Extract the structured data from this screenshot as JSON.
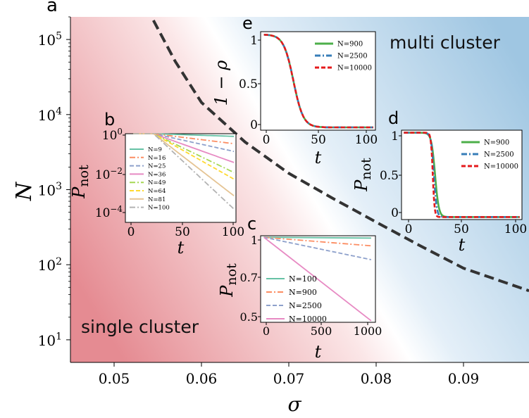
{
  "chart_data": [
    {
      "panel": "a",
      "type": "heatmap",
      "xlabel": "σ",
      "ylabel": "N",
      "xlim": [
        0.045,
        0.0975
      ],
      "ylim": [
        5,
        200000
      ],
      "yscale": "log",
      "xticks": [
        "0.05",
        "0.06",
        "0.07",
        "0.08",
        "0.09"
      ],
      "yticks": [
        "10^1",
        "10^2",
        "10^3",
        "10^4",
        "10^5"
      ],
      "regions": [
        "single cluster",
        "multi cluster"
      ],
      "colors": {
        "single": "#e58b92",
        "multi": "#9fc6e2"
      },
      "boundary": {
        "style": "dashed",
        "color": "#333333",
        "x": [
          0.0545,
          0.057,
          0.06,
          0.065,
          0.07,
          0.075,
          0.08,
          0.085,
          0.09,
          0.0975
        ],
        "y": [
          180000,
          51000,
          14500,
          4300,
          1650,
          770,
          370,
          180,
          90,
          45
        ]
      }
    },
    {
      "panel": "b",
      "type": "line",
      "xlabel": "t",
      "ylabel": "P_not",
      "yscale": "log",
      "xlim": [
        -8,
        102
      ],
      "ylim": [
        0.0001,
        1
      ],
      "xticks": [
        "0",
        "50",
        "100"
      ],
      "yticks": [
        "10^0",
        "10^-2",
        "10^-4"
      ],
      "series": [
        {
          "name": "N=9",
          "color": "#66c2a5",
          "dash": "solid",
          "t0": 20,
          "decay_log10": 0.12
        },
        {
          "name": "N=16",
          "color": "#fc8d62",
          "dash": "dashdot",
          "t0": 20,
          "decay_log10": 0.45
        },
        {
          "name": "N=25",
          "color": "#8da0cb",
          "dash": "dashed",
          "t0": 20,
          "decay_log10": 0.8
        },
        {
          "name": "N=36",
          "color": "#e78ac3",
          "dash": "solid",
          "t0": 20,
          "decay_log10": 1.3
        },
        {
          "name": "N=49",
          "color": "#a6d854",
          "dash": "dashdot",
          "t0": 20,
          "decay_log10": 1.75
        },
        {
          "name": "N=64",
          "color": "#ffd92f",
          "dash": "dashed",
          "t0": 20,
          "decay_log10": 2.05
        },
        {
          "name": "N=81",
          "color": "#e5c494",
          "dash": "solid",
          "t0": 20,
          "decay_log10": 2.8
        },
        {
          "name": "N=100",
          "color": "#b3b3b3",
          "dash": "dashdot",
          "t0": 20,
          "decay_log10": 3.4
        }
      ]
    },
    {
      "panel": "c",
      "type": "line",
      "xlabel": "t",
      "ylabel": "P_not",
      "xlim": [
        -30,
        1040
      ],
      "ylim": [
        0.45,
        1.01
      ],
      "xticks": [
        "0",
        "500",
        "1000"
      ],
      "yticks": [
        "1",
        "0.7",
        "0.5"
      ],
      "series": [
        {
          "name": "N=100",
          "color": "#66c2a5",
          "dash": "solid",
          "x": [
            0,
            1000
          ],
          "y": [
            1.0,
            0.995
          ]
        },
        {
          "name": "N=900",
          "color": "#fc8d62",
          "dash": "dashdot",
          "x": [
            0,
            1000
          ],
          "y": [
            1.0,
            0.945
          ]
        },
        {
          "name": "N=2500",
          "color": "#8da0cb",
          "dash": "dashed",
          "x": [
            0,
            1000
          ],
          "y": [
            1.0,
            0.855
          ]
        },
        {
          "name": "N=10000",
          "color": "#e78ac3",
          "dash": "solid",
          "x": [
            0,
            1000
          ],
          "y": [
            1.0,
            0.46
          ]
        }
      ]
    },
    {
      "panel": "d",
      "type": "line",
      "xlabel": "t",
      "ylabel": "P_not",
      "xlim": [
        -2,
        102
      ],
      "ylim": [
        -0.03,
        1.03
      ],
      "xticks": [
        "0",
        "50",
        "100"
      ],
      "yticks": [
        "1",
        "0.5",
        "0"
      ],
      "series": [
        {
          "name": "N=900",
          "color": "#4daf4a",
          "dash": "solid",
          "t_mid": 27,
          "width": 1.6
        },
        {
          "name": "N=2500",
          "color": "#377eb8",
          "dash": "dashdot",
          "t_mid": 26,
          "width": 1.2
        },
        {
          "name": "N=10000",
          "color": "#e41a1c",
          "dash": "dashed",
          "t_mid": 25,
          "width": 0.8
        }
      ]
    },
    {
      "panel": "e",
      "type": "line",
      "xlabel": "t",
      "ylabel": "1 − ρ",
      "xlim": [
        -3,
        102
      ],
      "ylim": [
        -0.03,
        1.03
      ],
      "xticks": [
        "0",
        "50",
        "100"
      ],
      "yticks": [
        "1",
        "0.5",
        "0"
      ],
      "series": [
        {
          "name": "N=900",
          "color": "#4daf4a",
          "dash": "solid",
          "t_mid": 27,
          "width": 4.5
        },
        {
          "name": "N=2500",
          "color": "#377eb8",
          "dash": "dashdot",
          "t_mid": 27,
          "width": 4.5
        },
        {
          "name": "N=10000",
          "color": "#e41a1c",
          "dash": "dashed",
          "t_mid": 27,
          "width": 4.5
        }
      ]
    }
  ]
}
